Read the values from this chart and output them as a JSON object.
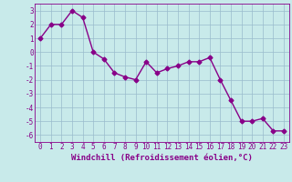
{
  "x": [
    0,
    1,
    2,
    3,
    4,
    5,
    6,
    7,
    8,
    9,
    10,
    11,
    12,
    13,
    14,
    15,
    16,
    17,
    18,
    19,
    20,
    21,
    22,
    23
  ],
  "y": [
    1.0,
    2.0,
    2.0,
    3.0,
    2.5,
    0.0,
    -0.5,
    -1.5,
    -1.8,
    -2.0,
    -0.7,
    -1.5,
    -1.2,
    -1.0,
    -0.7,
    -0.7,
    -0.4,
    -2.0,
    -3.5,
    -5.0,
    -5.0,
    -4.8,
    -5.7,
    -5.7
  ],
  "line_color": "#880088",
  "marker": "D",
  "marker_size": 2.5,
  "xlabel": "Windchill (Refroidissement éolien,°C)",
  "xlabel_fontsize": 6.5,
  "ylim": [
    -6.5,
    3.5
  ],
  "xlim": [
    -0.5,
    23.5
  ],
  "yticks": [
    -6,
    -5,
    -4,
    -3,
    -2,
    -1,
    0,
    1,
    2,
    3
  ],
  "xticks": [
    0,
    1,
    2,
    3,
    4,
    5,
    6,
    7,
    8,
    9,
    10,
    11,
    12,
    13,
    14,
    15,
    16,
    17,
    18,
    19,
    20,
    21,
    22,
    23
  ],
  "background_color": "#c8eaea",
  "grid_color": "#99bbcc",
  "tick_fontsize": 5.5,
  "line_width": 1.0
}
